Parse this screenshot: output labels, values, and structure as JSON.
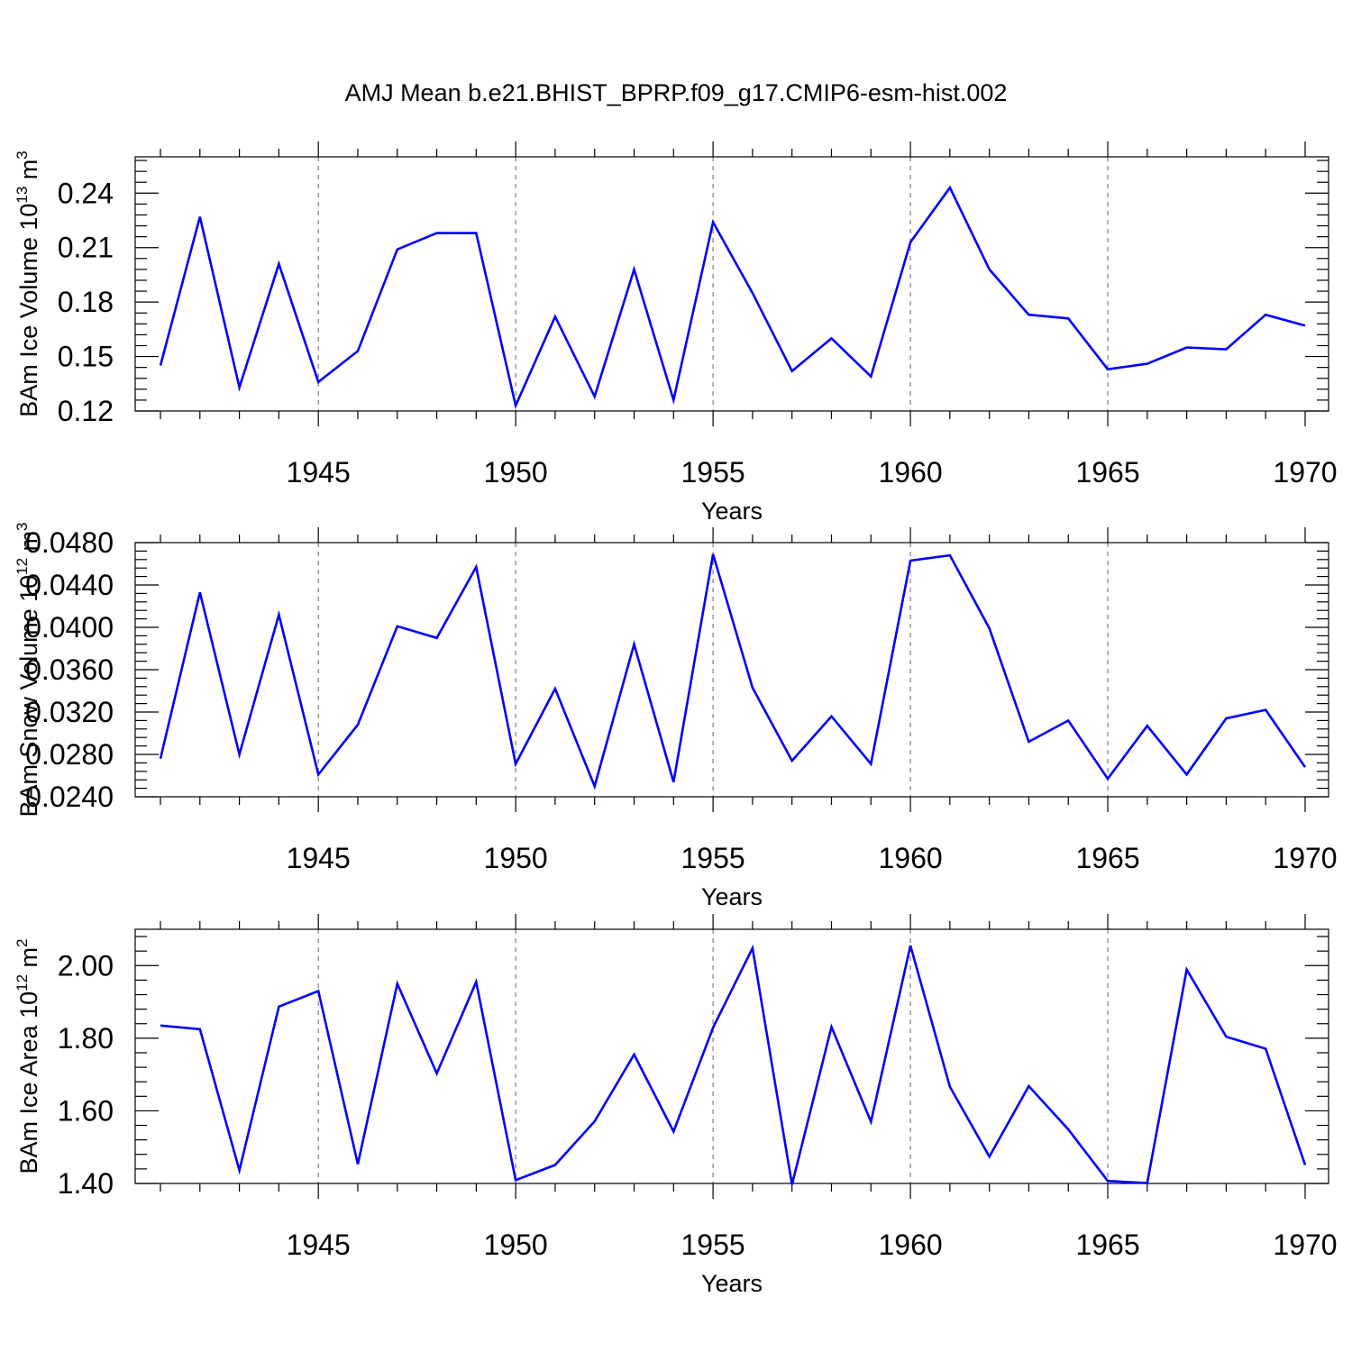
{
  "figure_title": "AMJ Mean b.e21.BHIST_BPRP.f09_g17.CMIP6-esm-hist.002",
  "chart_data": [
    {
      "type": "line",
      "title": "",
      "xlabel": "Years",
      "ylabel": "BAm Ice Volume 10",
      "ylabel_exp": "13",
      "ylabel_unit": " m",
      "ylabel_unit_exp": "3",
      "xlim": [
        1941,
        1970
      ],
      "ylim": [
        0.12,
        0.26
      ],
      "x_ticks": [
        1945,
        1950,
        1955,
        1960,
        1965,
        1970
      ],
      "y_ticks": [
        "0.12",
        "0.15",
        "0.18",
        "0.21",
        "0.24"
      ],
      "grid": "dashed vertical lines at 1945-1965",
      "series": [
        {
          "name": "BAm Ice Volume",
          "color": "#0000ff",
          "x": [
            1941,
            1942,
            1943,
            1944,
            1945,
            1946,
            1947,
            1948,
            1949,
            1950,
            1951,
            1952,
            1953,
            1954,
            1955,
            1956,
            1957,
            1958,
            1959,
            1960,
            1961,
            1962,
            1963,
            1964,
            1965,
            1966,
            1967,
            1968,
            1969,
            1970
          ],
          "values": [
            0.145,
            0.227,
            0.133,
            0.201,
            0.136,
            0.153,
            0.209,
            0.218,
            0.218,
            0.123,
            0.172,
            0.128,
            0.198,
            0.126,
            0.224,
            0.185,
            0.142,
            0.16,
            0.139,
            0.213,
            0.243,
            0.198,
            0.173,
            0.171,
            0.143,
            0.146,
            0.155,
            0.154,
            0.173,
            0.167
          ]
        }
      ]
    },
    {
      "type": "line",
      "title": "",
      "xlabel": "Years",
      "ylabel": "BAm Snow Volume 10",
      "ylabel_exp": "12",
      "ylabel_unit": " m",
      "ylabel_unit_exp": "3",
      "xlim": [
        1941,
        1970
      ],
      "ylim": [
        0.024,
        0.048
      ],
      "x_ticks": [
        1945,
        1950,
        1955,
        1960,
        1965,
        1970
      ],
      "y_ticks": [
        "0.0240",
        "0.0280",
        "0.0320",
        "0.0360",
        "0.0400",
        "0.0440",
        "0.0480"
      ],
      "grid": "dashed vertical lines at 1945-1965",
      "series": [
        {
          "name": "BAm Snow Volume",
          "color": "#0000ff",
          "x": [
            1941,
            1942,
            1943,
            1944,
            1945,
            1946,
            1947,
            1948,
            1949,
            1950,
            1951,
            1952,
            1953,
            1954,
            1955,
            1956,
            1957,
            1958,
            1959,
            1960,
            1961,
            1962,
            1963,
            1964,
            1965,
            1966,
            1967,
            1968,
            1969,
            1970
          ],
          "values": [
            0.0276,
            0.0433,
            0.028,
            0.0412,
            0.0261,
            0.0308,
            0.0401,
            0.039,
            0.0457,
            0.0271,
            0.0342,
            0.025,
            0.0384,
            0.0254,
            0.0469,
            0.0343,
            0.0274,
            0.0316,
            0.0271,
            0.0463,
            0.0468,
            0.0399,
            0.0292,
            0.0312,
            0.0257,
            0.0307,
            0.0261,
            0.0314,
            0.0322,
            0.0268
          ]
        }
      ]
    },
    {
      "type": "line",
      "title": "",
      "xlabel": "Years",
      "ylabel": "BAm Ice Area 10",
      "ylabel_exp": "12",
      "ylabel_unit": " m",
      "ylabel_unit_exp": "2",
      "xlim": [
        1941,
        1970
      ],
      "ylim": [
        1.4,
        2.1
      ],
      "x_ticks": [
        1945,
        1950,
        1955,
        1960,
        1965,
        1970
      ],
      "y_ticks": [
        "1.40",
        "1.60",
        "1.80",
        "2.00"
      ],
      "grid": "dashed vertical lines at 1945-1965",
      "series": [
        {
          "name": "BAm Ice Area",
          "color": "#0000ff",
          "x": [
            1941,
            1942,
            1943,
            1944,
            1945,
            1946,
            1947,
            1948,
            1949,
            1950,
            1951,
            1952,
            1953,
            1954,
            1955,
            1956,
            1957,
            1958,
            1959,
            1960,
            1961,
            1962,
            1963,
            1964,
            1965,
            1966,
            1967,
            1968,
            1969,
            1970
          ],
          "values": [
            1.835,
            1.825,
            1.436,
            1.887,
            1.93,
            1.453,
            1.95,
            1.703,
            1.955,
            1.409,
            1.451,
            1.571,
            1.755,
            1.543,
            1.829,
            2.048,
            1.397,
            1.831,
            1.57,
            2.055,
            1.666,
            1.474,
            1.668,
            1.549,
            1.407,
            1.401,
            1.989,
            1.804,
            1.771,
            1.451
          ]
        }
      ]
    }
  ]
}
